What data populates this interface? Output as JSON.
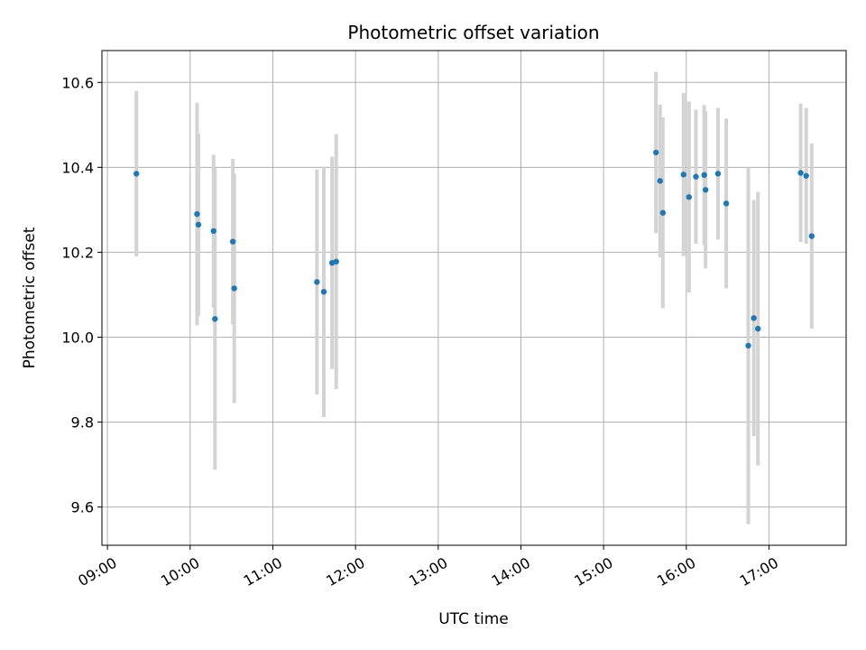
{
  "chart_data": {
    "type": "scatter",
    "title": "Photometric offset variation",
    "xlabel": "UTC time",
    "ylabel": "Photometric offset",
    "x_ticks": [
      "09:00",
      "10:00",
      "11:00",
      "12:00",
      "13:00",
      "14:00",
      "15:00",
      "16:00",
      "17:00"
    ],
    "y_ticks": [
      "9.6",
      "9.8",
      "10.0",
      "10.2",
      "10.4",
      "10.6"
    ],
    "xlim": [
      "08:56",
      "17:56"
    ],
    "ylim": [
      9.51,
      10.675
    ],
    "grid": true,
    "colors": {
      "point": "#1f77b4",
      "errorbar": "#d3d3d3",
      "grid": "#b0b0b0"
    },
    "series": [
      {
        "x": [
          "09:21",
          "10:05",
          "10:06",
          "10:17",
          "10:18",
          "10:31",
          "10:32",
          "11:32",
          "11:37",
          "11:43",
          "11:46",
          "15:38",
          "15:41",
          "15:43",
          "15:58",
          "16:02",
          "16:07",
          "16:13",
          "16:14",
          "16:23",
          "16:29",
          "16:45",
          "16:49",
          "16:52",
          "17:23",
          "17:27",
          "17:31"
        ],
        "y": [
          10.385,
          10.29,
          10.265,
          10.25,
          10.043,
          10.225,
          10.115,
          10.13,
          10.107,
          10.175,
          10.178,
          10.435,
          10.368,
          10.293,
          10.383,
          10.33,
          10.378,
          10.382,
          10.347,
          10.385,
          10.315,
          9.98,
          10.045,
          10.02,
          10.387,
          10.38,
          10.238
        ],
        "yerr": [
          0.195,
          0.262,
          0.215,
          0.18,
          0.355,
          0.195,
          0.27,
          0.265,
          0.295,
          0.25,
          0.3,
          0.19,
          0.18,
          0.225,
          0.192,
          0.225,
          0.158,
          0.165,
          0.185,
          0.155,
          0.2,
          0.42,
          0.278,
          0.322,
          0.163,
          0.16,
          0.218
        ]
      }
    ]
  }
}
